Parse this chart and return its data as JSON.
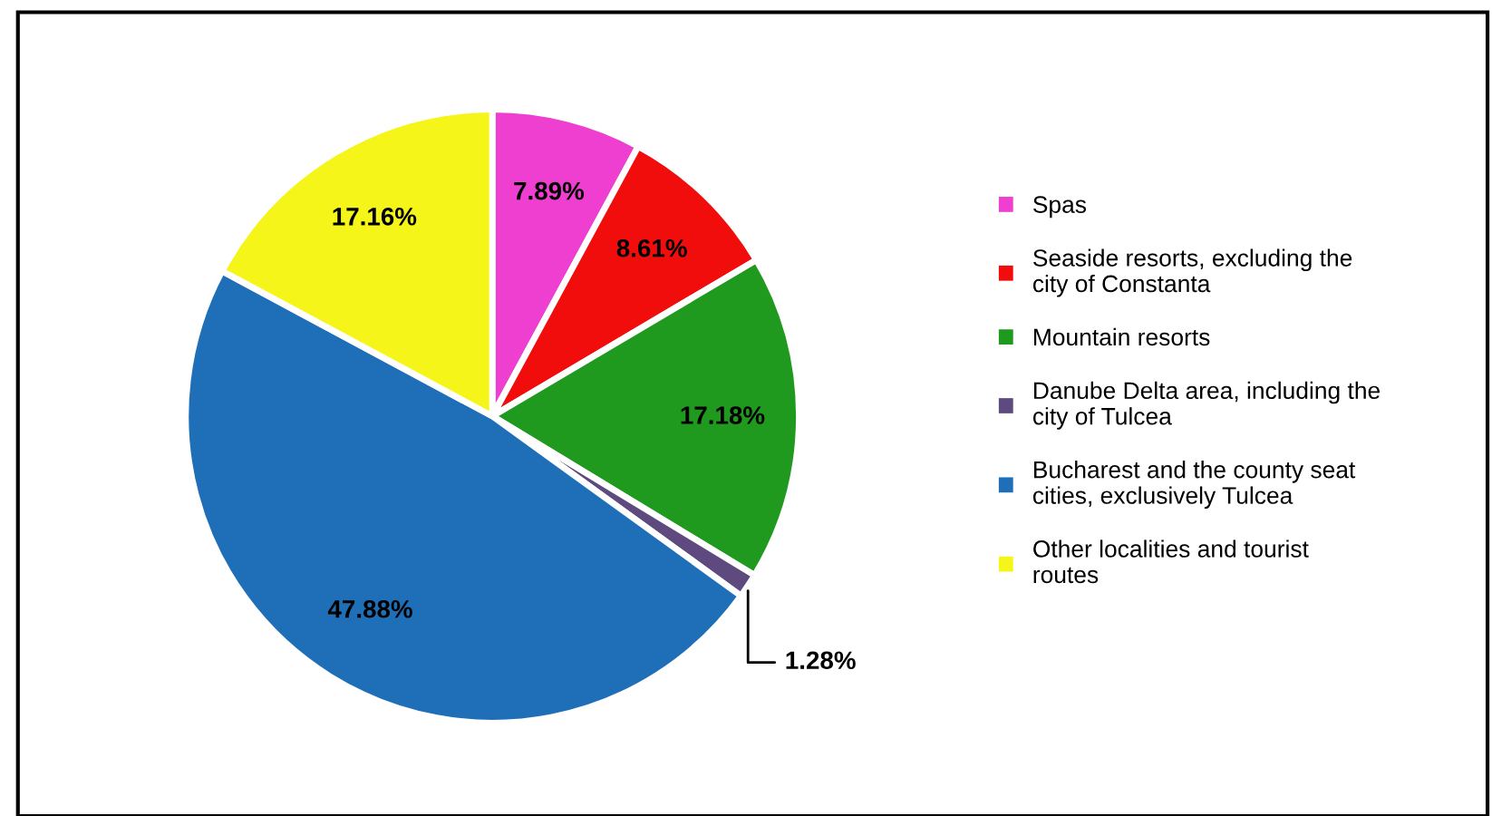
{
  "chart_data": {
    "type": "pie",
    "categories": [
      "Spas",
      "Seaside resorts, excluding the city of Constanta",
      "Mountain resorts",
      "Danube Delta area, including the city of Tulcea",
      "Bucharest and the county seat cities, exclusively Tulcea",
      "Other localities and tourist routes"
    ],
    "values": [
      7.89,
      8.61,
      17.18,
      1.28,
      47.88,
      17.16
    ],
    "value_labels": [
      "7.89%",
      "8.61%",
      "17.18%",
      "1.28%",
      "47.88%",
      "17.16%"
    ],
    "colors": [
      "#ee3fd0",
      "#f20d0d",
      "#1f9a1f",
      "#5e4a7e",
      "#1f6fb8",
      "#f5f51a"
    ],
    "legend": "right"
  }
}
